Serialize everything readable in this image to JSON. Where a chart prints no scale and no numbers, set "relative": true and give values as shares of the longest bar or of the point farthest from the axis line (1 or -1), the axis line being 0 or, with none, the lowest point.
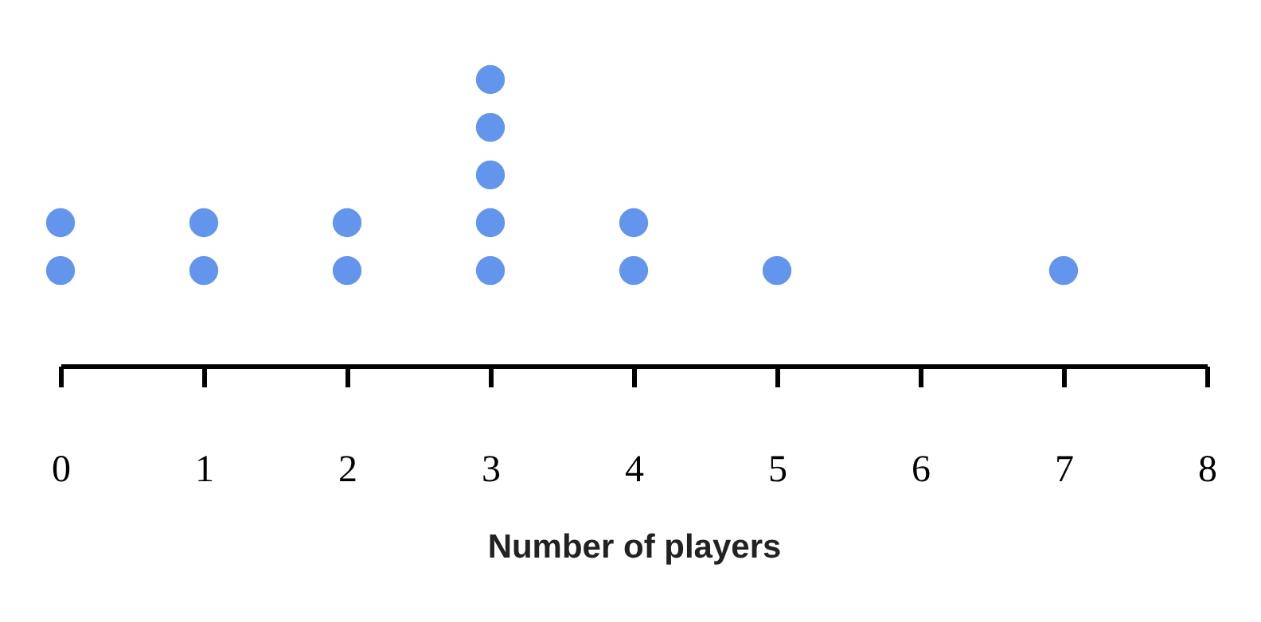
{
  "chart_data": {
    "type": "scatter",
    "xlabel": "Number of players",
    "relative": true,
    "marker": "circle",
    "grid": false,
    "xlim": [
      0,
      8
    ],
    "xticks": [
      0,
      1,
      2,
      3,
      4,
      5,
      6,
      7,
      8
    ],
    "series": [
      {
        "color": "#6495ed",
        "x": [
          0,
          0,
          1,
          1,
          2,
          2,
          3,
          3,
          3,
          3,
          3,
          4,
          4,
          5,
          7
        ],
        "values": [
          0.333,
          0.5,
          0.333,
          0.5,
          0.333,
          0.5,
          0.333,
          0.5,
          0.667,
          0.833,
          1,
          0.333,
          0.5,
          0.333,
          0.333
        ]
      }
    ]
  }
}
